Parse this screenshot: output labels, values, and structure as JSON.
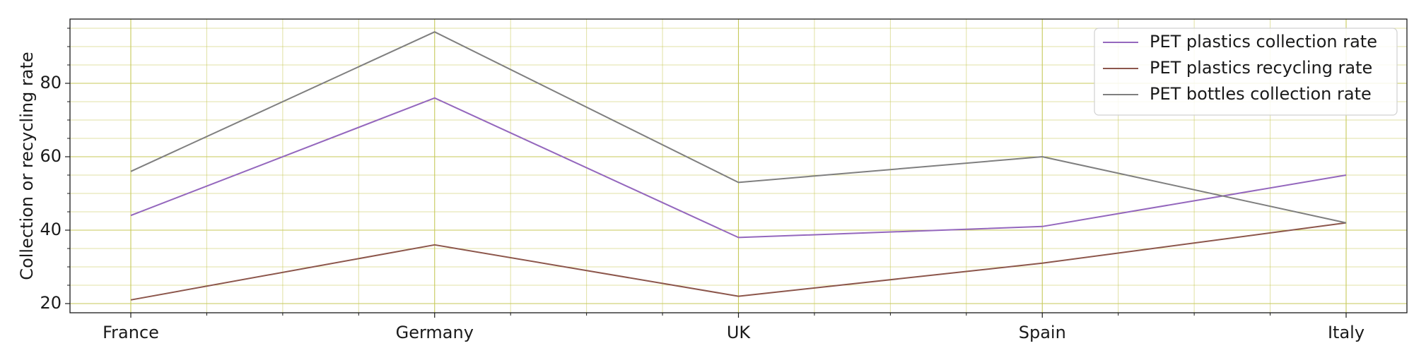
{
  "chart_data": {
    "type": "line",
    "title": "",
    "xlabel": "",
    "ylabel": "Collection or recycling rate",
    "categories": [
      "France",
      "Germany",
      "UK",
      "Spain",
      "Italy"
    ],
    "yticks": [
      20,
      40,
      60,
      80
    ],
    "ylim": [
      17.5,
      97.5
    ],
    "grid": true,
    "grid_color": "#c7c95a",
    "legend_position": "top-right",
    "series": [
      {
        "name": "PET plastics collection rate",
        "color": "#9467bd",
        "values": [
          44,
          76,
          38,
          41,
          55
        ]
      },
      {
        "name": "PET plastics recycling rate",
        "color": "#8c564b",
        "values": [
          21,
          36,
          22,
          31,
          42
        ]
      },
      {
        "name": "PET bottles collection rate",
        "color": "#7f7f7f",
        "values": [
          56,
          94,
          53,
          60,
          42
        ]
      }
    ]
  }
}
